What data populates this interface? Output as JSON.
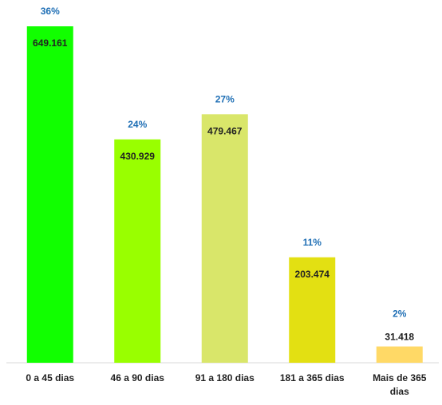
{
  "chart_data": {
    "type": "bar",
    "categories": [
      "0 a 45 dias",
      "46 a 90 dias",
      "91 a 180 dias",
      "181 a 365 dias",
      "Mais de 365 dias"
    ],
    "values": [
      649161,
      430929,
      479467,
      203474,
      31418
    ],
    "value_labels": [
      "649.161",
      "430.929",
      "479.467",
      "203.474",
      "31.418"
    ],
    "shares": [
      36,
      24,
      27,
      11,
      2
    ],
    "share_labels": [
      "36%",
      "24%",
      "27%",
      "11%",
      "2%"
    ],
    "colors": [
      "#11ff00",
      "#99ff00",
      "#d9e66a",
      "#e3e012",
      "#ffd966"
    ]
  }
}
